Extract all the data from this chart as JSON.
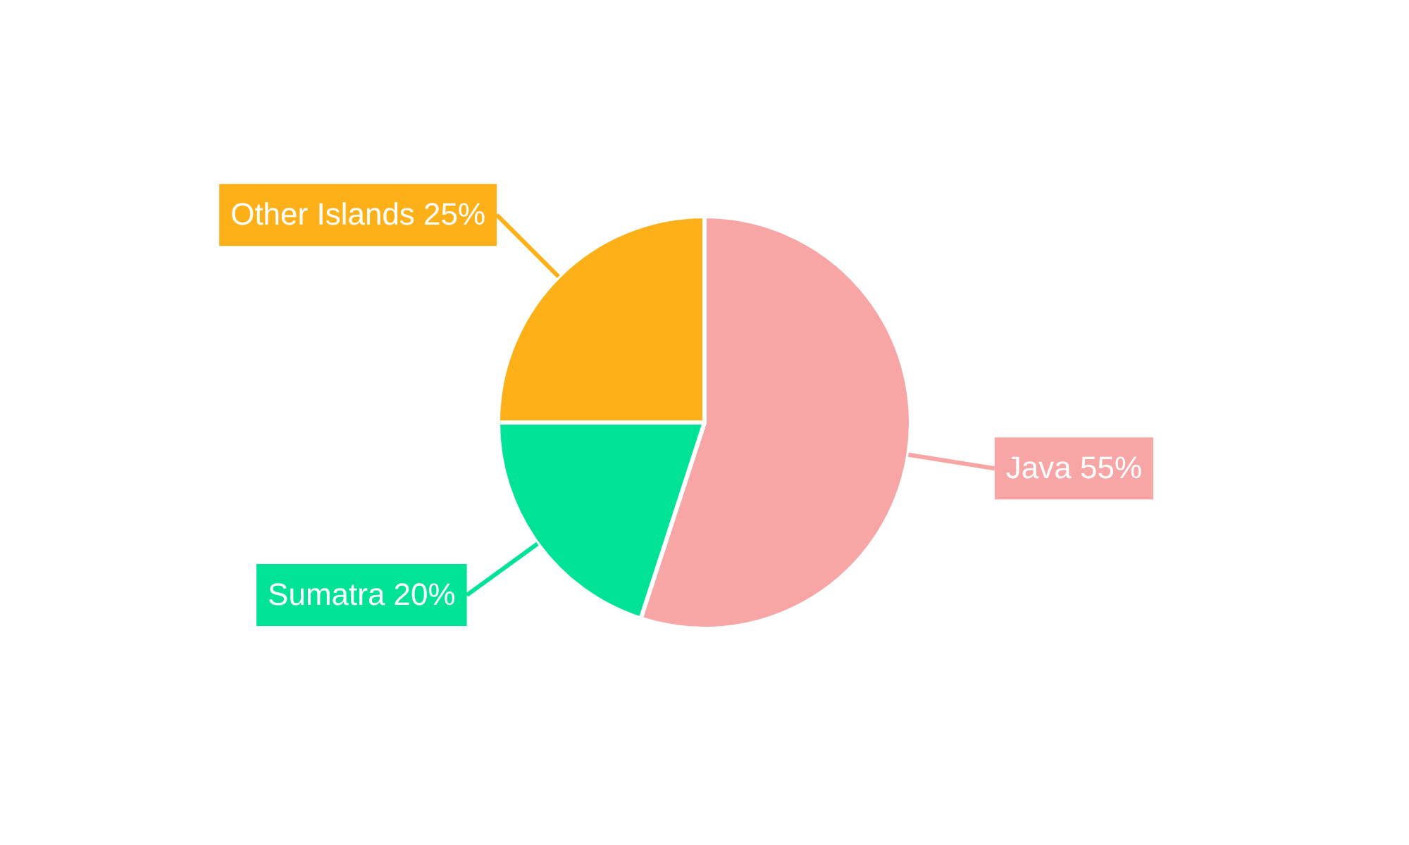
{
  "chart_data": {
    "type": "pie",
    "categories": [
      "Java",
      "Sumatra",
      "Other Islands"
    ],
    "values": [
      55,
      20,
      25
    ],
    "value_labels": [
      "55%",
      "20%",
      "25%"
    ],
    "colors": [
      "#f8a5a5",
      "#00e396",
      "#feb019"
    ],
    "legend": false
  }
}
